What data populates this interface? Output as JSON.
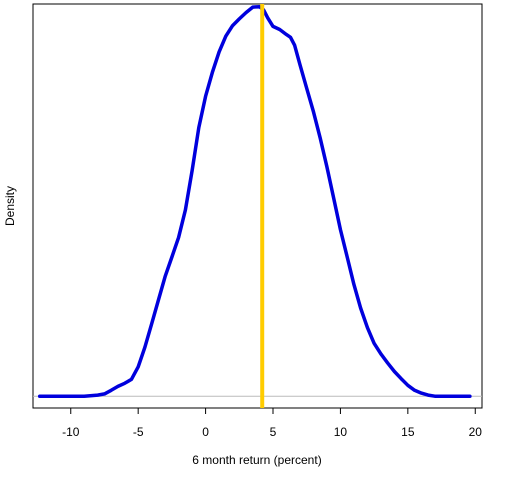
{
  "chart_data": {
    "type": "line",
    "title": "",
    "xlabel": "6 month return (percent)",
    "ylabel": "Density",
    "xlim": [
      -12.8,
      20.5
    ],
    "ylim": [
      -0.003,
      0.1
    ],
    "x_ticks": [
      "-10",
      "-5",
      "0",
      "5",
      "10",
      "15",
      "20"
    ],
    "y_ticks": [],
    "grid": false,
    "series": [
      {
        "color": "#0000dd",
        "x": [
          -12.3,
          -9,
          -8,
          -7.5,
          -7,
          -6.5,
          -6,
          -5.5,
          -5,
          -4.5,
          -4,
          -3.5,
          -3,
          -2.5,
          -2,
          -1.5,
          -1,
          -0.5,
          0,
          0.5,
          1,
          1.5,
          2,
          2.5,
          3,
          3.5,
          4,
          4.3,
          4.6,
          5,
          5.5,
          6,
          6.3,
          6.6,
          7,
          7.5,
          8,
          8.5,
          9,
          9.5,
          10,
          10.5,
          11,
          11.5,
          12,
          12.5,
          13,
          13.5,
          14,
          14.5,
          15,
          15.5,
          16,
          16.5,
          17,
          17.5,
          18,
          19.6
        ],
        "y": [
          0.0,
          0.0,
          0.0003,
          0.0006,
          0.0015,
          0.0025,
          0.0033,
          0.0043,
          0.0075,
          0.0125,
          0.0185,
          0.0245,
          0.0305,
          0.0355,
          0.0405,
          0.0475,
          0.0575,
          0.0685,
          0.0765,
          0.0825,
          0.0878,
          0.0918,
          0.0945,
          0.0962,
          0.0978,
          0.0992,
          0.0993,
          0.0985,
          0.0965,
          0.0943,
          0.0935,
          0.0922,
          0.0915,
          0.0895,
          0.0845,
          0.0785,
          0.0725,
          0.0658,
          0.0585,
          0.0505,
          0.0425,
          0.0355,
          0.0285,
          0.0225,
          0.0175,
          0.0135,
          0.0108,
          0.0085,
          0.0063,
          0.0045,
          0.0028,
          0.0015,
          0.0008,
          0.0003,
          0.0,
          0.0,
          0.0,
          0.0
        ]
      }
    ],
    "vline": {
      "x": 4.2,
      "color": "#ffcc00"
    },
    "baseline": {
      "y": 0,
      "color": "#bbbbbb"
    }
  }
}
